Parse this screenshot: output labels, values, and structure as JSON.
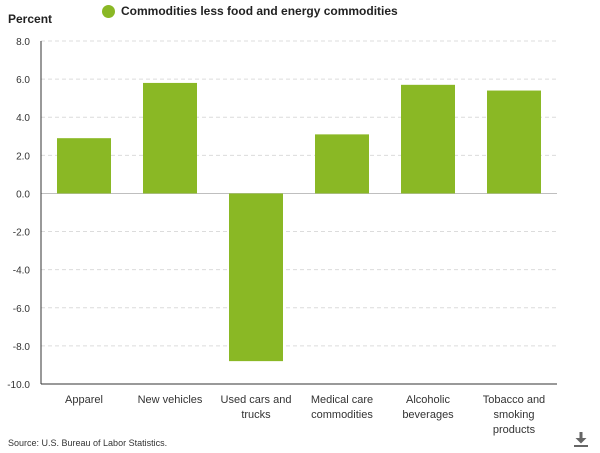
{
  "chart_data": {
    "type": "bar",
    "ylabel": "Percent",
    "categories": [
      "Apparel",
      "New vehicles",
      "Used cars and trucks",
      "Medical care commodities",
      "Alcoholic beverages",
      "Tobacco and smoking products"
    ],
    "category_lines": [
      [
        "Apparel"
      ],
      [
        "New vehicles"
      ],
      [
        "Used cars and",
        "trucks"
      ],
      [
        "Medical care",
        "commodities"
      ],
      [
        "Alcoholic",
        "beverages"
      ],
      [
        "Tobacco and",
        "smoking",
        "products"
      ]
    ],
    "series": [
      {
        "name": "Commodities less food and energy commodities",
        "values": [
          2.9,
          5.8,
          -8.8,
          3.1,
          5.7,
          5.4
        ]
      }
    ],
    "ylim": [
      -10.0,
      8.0
    ],
    "yticks": [
      8.0,
      6.0,
      4.0,
      2.0,
      0.0,
      -2.0,
      -4.0,
      -6.0,
      -8.0,
      -10.0
    ],
    "ytick_labels": [
      "8.0",
      "6.0",
      "4.0",
      "2.0",
      "0.0",
      "-2.0",
      "-4.0",
      "-6.0",
      "-8.0",
      "-10.0"
    ],
    "grid": true,
    "legend_position": "top",
    "bar_color": "#8ab825"
  },
  "source": "Source: U.S. Bureau of Labor Statistics.",
  "download_icon": "download-icon"
}
